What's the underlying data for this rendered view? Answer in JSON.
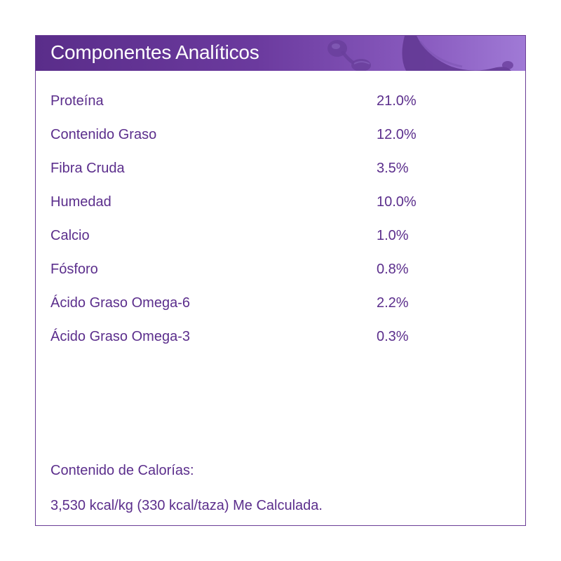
{
  "header": {
    "title": "Componentes Analíticos",
    "art_icon": "sausage-treat-icon"
  },
  "rows": [
    {
      "label": "Proteína",
      "value": "21.0%"
    },
    {
      "label": "Contenido Graso",
      "value": "12.0%"
    },
    {
      "label": "Fibra Cruda",
      "value": "3.5%"
    },
    {
      "label": "Humedad",
      "value": "10.0%"
    },
    {
      "label": "Calcio",
      "value": "1.0%"
    },
    {
      "label": "Fósforo",
      "value": "0.8%"
    },
    {
      "label": "Ácido Graso Omega-6",
      "value": "2.2%"
    },
    {
      "label": "Ácido Graso Omega-3",
      "value": "0.3%"
    }
  ],
  "calories": {
    "title": "Contenido de Calorías:",
    "value": "3,530 kcal/kg (330 kcal/taza) Me Calculada."
  },
  "colors": {
    "accent": "#5b2e8c",
    "header_start": "#5a2d8a",
    "header_end": "#a07ad6",
    "border": "#6a3d96"
  }
}
